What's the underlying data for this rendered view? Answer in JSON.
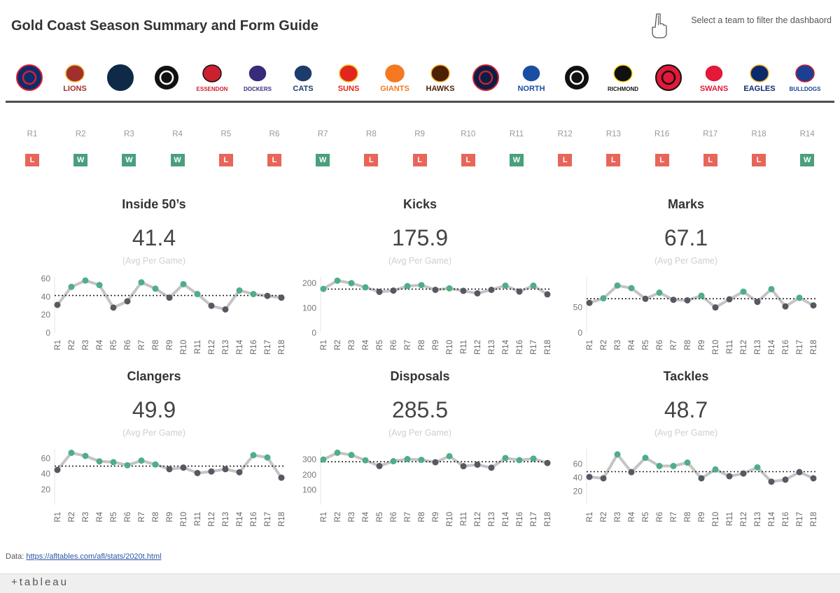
{
  "header": {
    "title": "Gold Coast Season Summary and Form Guide",
    "filter_hint": "Select a team to filter the dashbaord",
    "hint_icon": "pointing-hand-icon"
  },
  "teams": [
    {
      "label": "",
      "color": "#0a2f6b",
      "accent": "#e21937"
    },
    {
      "label": "LIONS",
      "color": "#a0302e",
      "accent": "#f5b335"
    },
    {
      "label": "",
      "color": "#0f2a47",
      "accent": "#0f2a47"
    },
    {
      "label": "",
      "color": "#111111",
      "accent": "#ffffff"
    },
    {
      "label": "ESSENDON",
      "color": "#cc2031",
      "accent": "#111111"
    },
    {
      "label": "DOCKERS",
      "color": "#3a2a7a",
      "accent": "#ffffff"
    },
    {
      "label": "CATS",
      "color": "#1c3c6b",
      "accent": "#ffffff"
    },
    {
      "label": "SUNS",
      "color": "#e2261d",
      "accent": "#f7c21c"
    },
    {
      "label": "GIANTS",
      "color": "#f47920",
      "accent": "#f47920"
    },
    {
      "label": "HAWKS",
      "color": "#4d2004",
      "accent": "#f5b335"
    },
    {
      "label": "",
      "color": "#0b1e45",
      "accent": "#cc2031"
    },
    {
      "label": "NORTH",
      "color": "#1a4ea2",
      "accent": "#ffffff"
    },
    {
      "label": "",
      "color": "#111111",
      "accent": "#ffffff"
    },
    {
      "label": "RICHMOND",
      "color": "#111111",
      "accent": "#f7d51c"
    },
    {
      "label": "",
      "color": "#e21937",
      "accent": "#111111"
    },
    {
      "label": "SWANS",
      "color": "#e21937",
      "accent": "#ffffff"
    },
    {
      "label": "EAGLES",
      "color": "#0b2a6b",
      "accent": "#f5b335"
    },
    {
      "label": "BULLDOGS",
      "color": "#1c3f94",
      "accent": "#cc2031"
    }
  ],
  "form": {
    "rounds": [
      "R1",
      "R2",
      "R3",
      "R4",
      "R5",
      "R6",
      "R7",
      "R8",
      "R9",
      "R10",
      "R11",
      "R12",
      "R13",
      "R16",
      "R17",
      "R18",
      "R14"
    ],
    "results": [
      "L",
      "W",
      "W",
      "W",
      "L",
      "L",
      "W",
      "L",
      "L",
      "L",
      "W",
      "L",
      "L",
      "L",
      "L",
      "L",
      "W"
    ]
  },
  "colors": {
    "above": "#4fae86",
    "below": "#555962",
    "line": "#c4c4c4",
    "win": "#4a9f7d",
    "loss": "#e8655a"
  },
  "x_rounds": [
    "R1",
    "R2",
    "R3",
    "R4",
    "R5",
    "R6",
    "R7",
    "R8",
    "R9",
    "R10",
    "R11",
    "R12",
    "R13",
    "R14",
    "R16",
    "R17",
    "R18"
  ],
  "panels": [
    {
      "title": "Inside 50’s",
      "avg": "41.4",
      "sub": "(Avg Per Game)"
    },
    {
      "title": "Kicks",
      "avg": "175.9",
      "sub": "(Avg Per Game)"
    },
    {
      "title": "Marks",
      "avg": "67.1",
      "sub": "(Avg Per Game)"
    },
    {
      "title": "Clangers",
      "avg": "49.9",
      "sub": "(Avg Per Game)"
    },
    {
      "title": "Disposals",
      "avg": "285.5",
      "sub": "(Avg Per Game)"
    },
    {
      "title": "Tackles",
      "avg": "48.7",
      "sub": "(Avg Per Game)"
    }
  ],
  "chart_data": [
    {
      "type": "line",
      "title": "Inside 50’s",
      "x": [
        "R1",
        "R2",
        "R3",
        "R4",
        "R5",
        "R6",
        "R7",
        "R8",
        "R9",
        "R10",
        "R11",
        "R12",
        "R13",
        "R14",
        "R16",
        "R17",
        "R18"
      ],
      "values": [
        31,
        51,
        58,
        53,
        28,
        35,
        56,
        49,
        39,
        54,
        43,
        30,
        26,
        47,
        43,
        41,
        39
      ],
      "reference": 41.4,
      "ylim": [
        0,
        62
      ],
      "yticks": [
        0,
        20,
        40,
        60
      ]
    },
    {
      "type": "line",
      "title": "Kicks",
      "x": [
        "R1",
        "R2",
        "R3",
        "R4",
        "R5",
        "R6",
        "R7",
        "R8",
        "R9",
        "R10",
        "R11",
        "R12",
        "R13",
        "R14",
        "R16",
        "R17",
        "R18"
      ],
      "values": [
        177,
        210,
        200,
        183,
        165,
        170,
        188,
        192,
        173,
        179,
        169,
        159,
        173,
        190,
        166,
        190,
        155
      ],
      "reference": 175.9,
      "ylim": [
        0,
        225
      ],
      "yticks": [
        0,
        100,
        200
      ]
    },
    {
      "type": "line",
      "title": "Marks",
      "x": [
        "R1",
        "R2",
        "R3",
        "R4",
        "R5",
        "R6",
        "R7",
        "R8",
        "R9",
        "R10",
        "R11",
        "R12",
        "R13",
        "R14",
        "R16",
        "R17",
        "R18"
      ],
      "values": [
        59,
        68,
        93,
        88,
        67,
        79,
        65,
        64,
        73,
        50,
        66,
        81,
        61,
        86,
        52,
        69,
        54
      ],
      "reference": 67.1,
      "ylim": [
        0,
        110
      ],
      "yticks": [
        0,
        50
      ]
    },
    {
      "type": "line",
      "title": "Clangers",
      "x": [
        "R1",
        "R2",
        "R3",
        "R4",
        "R5",
        "R6",
        "R7",
        "R8",
        "R9",
        "R10",
        "R11",
        "R12",
        "R13",
        "R14",
        "R16",
        "R17",
        "R18"
      ],
      "values": [
        45,
        67,
        63,
        56,
        55,
        51,
        57,
        52,
        46,
        48,
        41,
        43,
        46,
        42,
        64,
        61,
        35
      ],
      "reference": 49.9,
      "ylim": [
        0,
        72
      ],
      "yticks": [
        20,
        40,
        60
      ]
    },
    {
      "type": "line",
      "title": "Disposals",
      "x": [
        "R1",
        "R2",
        "R3",
        "R4",
        "R5",
        "R6",
        "R7",
        "R8",
        "R9",
        "R10",
        "R11",
        "R12",
        "R13",
        "R14",
        "R16",
        "R17",
        "R18"
      ],
      "values": [
        300,
        345,
        330,
        295,
        257,
        289,
        303,
        298,
        282,
        322,
        256,
        266,
        246,
        310,
        296,
        306,
        277
      ],
      "reference": 285.5,
      "ylim": [
        0,
        370
      ],
      "yticks": [
        100,
        200,
        300
      ]
    },
    {
      "type": "line",
      "title": "Tackles",
      "x": [
        "R1",
        "R2",
        "R3",
        "R4",
        "R5",
        "R6",
        "R7",
        "R8",
        "R9",
        "R10",
        "R11",
        "R12",
        "R13",
        "R14",
        "R16",
        "R17",
        "R18"
      ],
      "values": [
        41,
        39,
        74,
        48,
        69,
        57,
        57,
        62,
        39,
        52,
        42,
        46,
        55,
        34,
        37,
        48,
        39
      ],
      "reference": 48.7,
      "ylim": [
        0,
        82
      ],
      "yticks": [
        20,
        40,
        60
      ]
    }
  ],
  "footer": {
    "data_label": "Data: ",
    "data_link": "https://afltables.com/afl/stats/2020t.html",
    "tableau_text": "+tableau"
  }
}
